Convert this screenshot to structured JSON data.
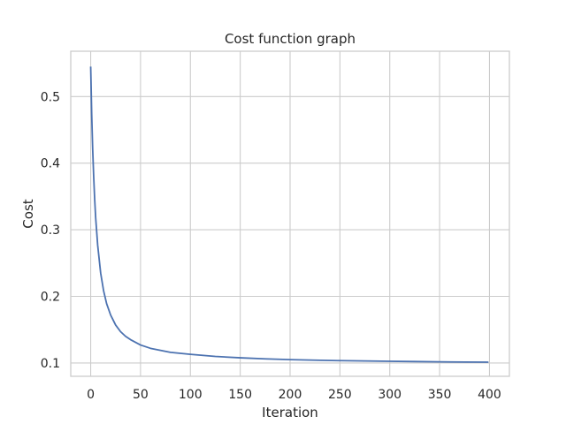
{
  "chart_data": {
    "type": "line",
    "title": "Cost function graph",
    "xlabel": "Iteration",
    "ylabel": "Cost",
    "xlim": [
      -20,
      420
    ],
    "ylim": [
      0.08,
      0.568
    ],
    "xticks": [
      0,
      50,
      100,
      150,
      200,
      250,
      300,
      350,
      400
    ],
    "yticks": [
      0.1,
      0.2,
      0.3,
      0.4,
      0.5
    ],
    "ytick_labels": [
      "0.1",
      "0.2",
      "0.3",
      "0.4",
      "0.5"
    ],
    "grid": true,
    "colors": {
      "line": "#4c72b0",
      "grid": "#cccccc",
      "frame": "#cccccc",
      "text": "#262626"
    },
    "series": [
      {
        "x": [
          0,
          1,
          2,
          3,
          4,
          5,
          7,
          10,
          13,
          16,
          20,
          25,
          30,
          35,
          40,
          50,
          60,
          70,
          80,
          90,
          100,
          125,
          150,
          175,
          200,
          225,
          250,
          275,
          300,
          325,
          350,
          375,
          399
        ],
        "y": [
          0.545,
          0.474,
          0.421,
          0.38,
          0.346,
          0.318,
          0.277,
          0.235,
          0.208,
          0.189,
          0.172,
          0.157,
          0.147,
          0.14,
          0.135,
          0.127,
          0.122,
          0.119,
          0.116,
          0.1145,
          0.113,
          0.1098,
          0.1078,
          0.1062,
          0.105,
          0.1042,
          0.1035,
          0.103,
          0.1025,
          0.1021,
          0.1017,
          0.1014,
          0.1012
        ]
      }
    ]
  }
}
